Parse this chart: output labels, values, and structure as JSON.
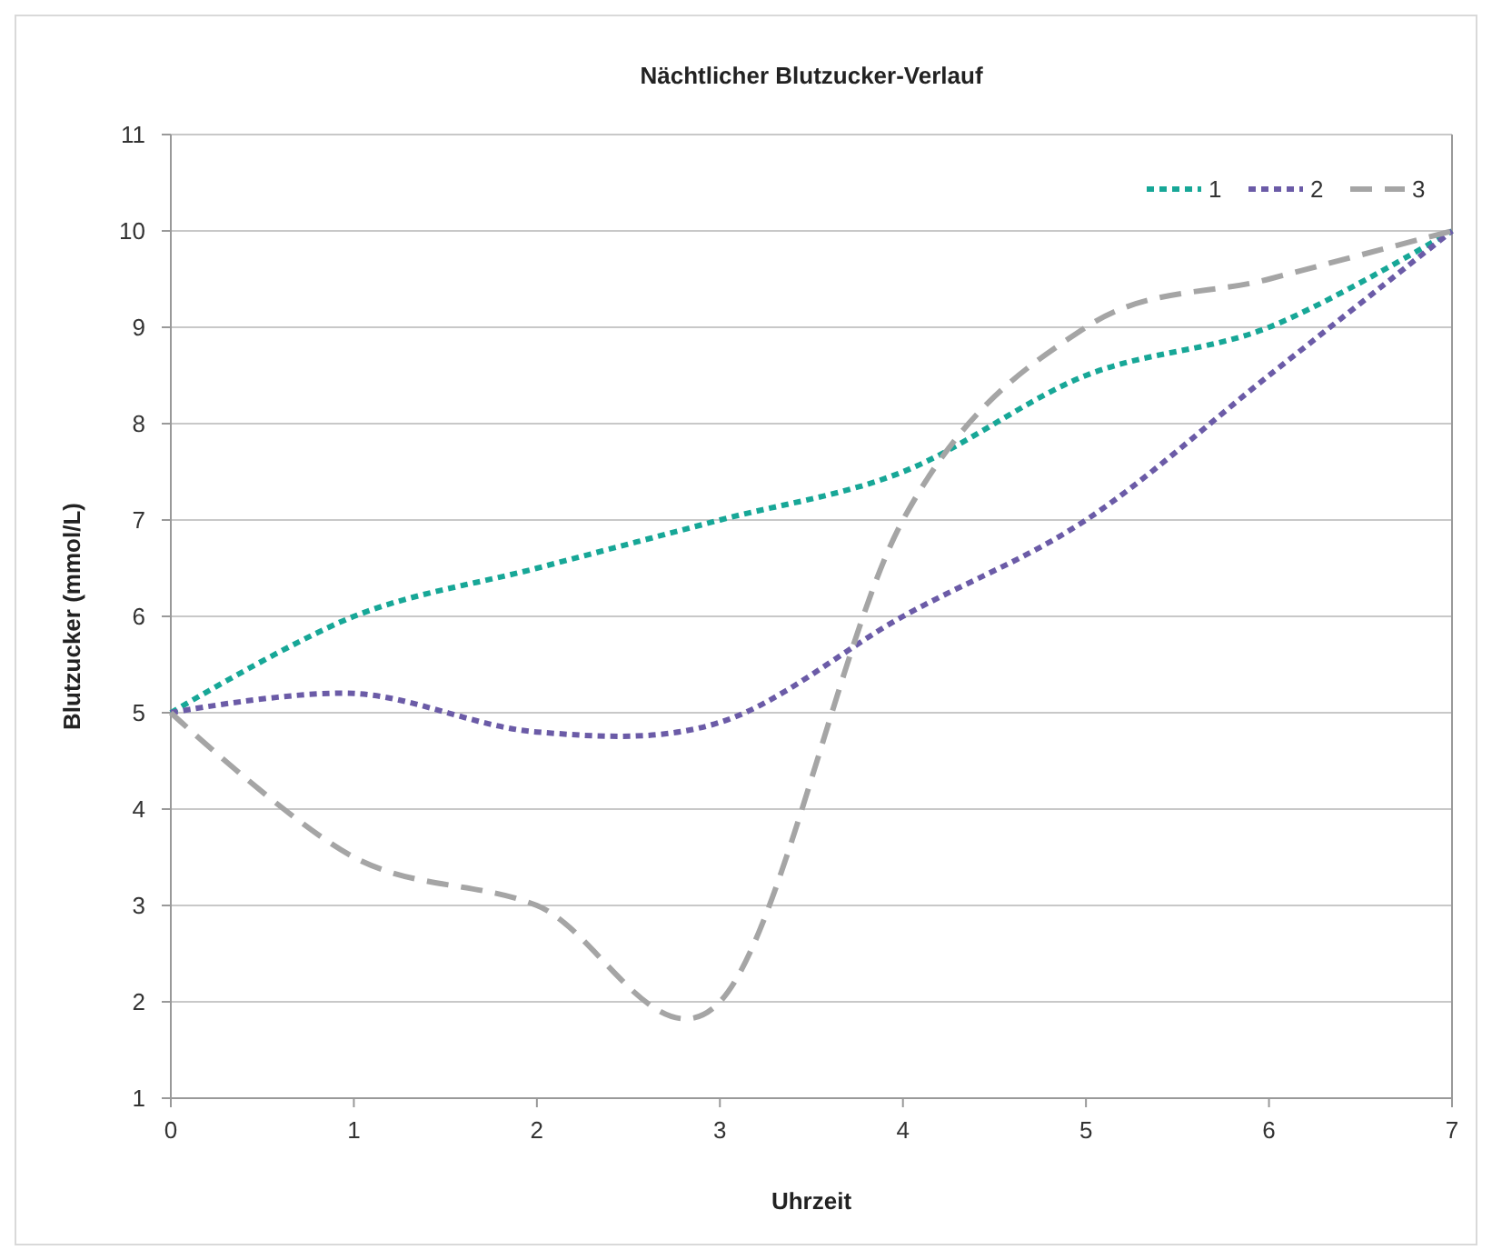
{
  "chart_data": {
    "type": "line",
    "title": "Nächtlicher Blutzucker-Verlauf",
    "xlabel": "Uhrzeit",
    "ylabel": "Blutzucker (mmol/L)",
    "x": [
      0,
      1,
      2,
      3,
      4,
      5,
      6,
      7
    ],
    "xlim": [
      0,
      7
    ],
    "xticks": [
      0,
      1,
      2,
      3,
      4,
      5,
      6,
      7
    ],
    "ylim": [
      1,
      11
    ],
    "yticks": [
      1,
      2,
      3,
      4,
      5,
      6,
      7,
      8,
      9,
      10,
      11
    ],
    "grid": "y",
    "legend": "top right",
    "marker": "none",
    "series": [
      {
        "name": "1",
        "color": "#17a797",
        "line_style": "dotted",
        "values": [
          5,
          6,
          6.5,
          7,
          7.5,
          8.5,
          9,
          10
        ]
      },
      {
        "name": "2",
        "color": "#6b5ba7",
        "line_style": "dotted",
        "values": [
          5,
          5.2,
          4.8,
          4.9,
          6,
          7,
          8.5,
          10
        ]
      },
      {
        "name": "3",
        "color": "#a5a5a5",
        "line_style": "dashed",
        "values": [
          5,
          3.5,
          3,
          2,
          7,
          9,
          9.5,
          10
        ]
      }
    ]
  }
}
